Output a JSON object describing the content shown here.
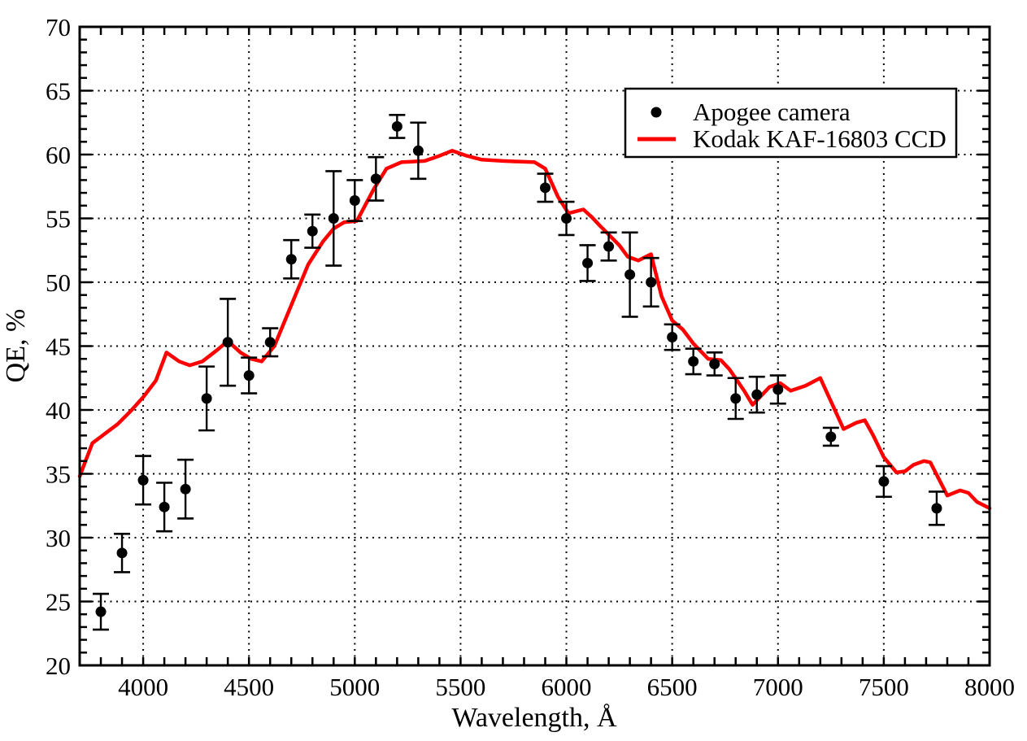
{
  "figure": {
    "background": "#ffffff",
    "frame_color": "#000000"
  },
  "chart_data": {
    "type": "scatter",
    "xlabel": "Wavelength, Å",
    "ylabel": "QE, %",
    "xlim": [
      3700,
      8000
    ],
    "ylim": [
      20,
      70
    ],
    "x_major_ticks": [
      4000,
      4500,
      5000,
      5500,
      6000,
      6500,
      7000,
      7500,
      8000
    ],
    "x_minor_step": 100,
    "y_major_ticks": [
      20,
      25,
      30,
      35,
      40,
      45,
      50,
      55,
      60,
      65,
      70
    ],
    "y_minor_step": 1,
    "grid": "dotted-at-major-ticks",
    "legend_position": "top-right",
    "series": [
      {
        "name": "Apogee camera",
        "type": "scatter-with-errorbars",
        "marker": "filled-circle",
        "color": "#000000",
        "points": [
          {
            "wavelength": 3800,
            "qe": 24.2,
            "err": 1.4
          },
          {
            "wavelength": 3900,
            "qe": 28.8,
            "err": 1.5
          },
          {
            "wavelength": 4000,
            "qe": 34.5,
            "err": 1.9
          },
          {
            "wavelength": 4100,
            "qe": 32.4,
            "err": 1.9
          },
          {
            "wavelength": 4200,
            "qe": 33.8,
            "err": 2.3
          },
          {
            "wavelength": 4300,
            "qe": 40.9,
            "err": 2.5
          },
          {
            "wavelength": 4400,
            "qe": 45.3,
            "err": 3.4
          },
          {
            "wavelength": 4500,
            "qe": 42.7,
            "err": 1.4
          },
          {
            "wavelength": 4600,
            "qe": 45.3,
            "err": 1.1
          },
          {
            "wavelength": 4700,
            "qe": 51.8,
            "err": 1.5
          },
          {
            "wavelength": 4800,
            "qe": 54.0,
            "err": 1.3
          },
          {
            "wavelength": 4900,
            "qe": 55.0,
            "err": 3.7
          },
          {
            "wavelength": 5000,
            "qe": 56.4,
            "err": 1.6
          },
          {
            "wavelength": 5100,
            "qe": 58.1,
            "err": 1.7
          },
          {
            "wavelength": 5200,
            "qe": 62.2,
            "err": 0.9
          },
          {
            "wavelength": 5300,
            "qe": 60.3,
            "err": 2.2
          },
          {
            "wavelength": 5900,
            "qe": 57.4,
            "err": 1.1
          },
          {
            "wavelength": 6000,
            "qe": 55.0,
            "err": 1.3
          },
          {
            "wavelength": 6100,
            "qe": 51.5,
            "err": 1.4
          },
          {
            "wavelength": 6200,
            "qe": 52.8,
            "err": 1.1
          },
          {
            "wavelength": 6300,
            "qe": 50.6,
            "err": 3.3
          },
          {
            "wavelength": 6400,
            "qe": 50.0,
            "err": 1.9
          },
          {
            "wavelength": 6500,
            "qe": 45.7,
            "err": 1.0
          },
          {
            "wavelength": 6600,
            "qe": 43.8,
            "err": 1.0
          },
          {
            "wavelength": 6700,
            "qe": 43.6,
            "err": 0.9
          },
          {
            "wavelength": 6800,
            "qe": 40.9,
            "err": 1.6
          },
          {
            "wavelength": 6900,
            "qe": 41.2,
            "err": 1.4
          },
          {
            "wavelength": 7000,
            "qe": 41.6,
            "err": 1.1
          },
          {
            "wavelength": 7250,
            "qe": 37.9,
            "err": 0.7
          },
          {
            "wavelength": 7500,
            "qe": 34.4,
            "err": 1.2
          },
          {
            "wavelength": 7750,
            "qe": 32.3,
            "err": 1.3
          }
        ]
      },
      {
        "name": "Kodak KAF-16803 CCD",
        "type": "line",
        "color": "#ff0000",
        "points": [
          [
            3700,
            34.8
          ],
          [
            3760,
            37.4
          ],
          [
            3800,
            37.9
          ],
          [
            3880,
            38.9
          ],
          [
            3940,
            39.9
          ],
          [
            4000,
            41.0
          ],
          [
            4060,
            42.3
          ],
          [
            4110,
            44.5
          ],
          [
            4170,
            43.8
          ],
          [
            4220,
            43.5
          ],
          [
            4280,
            43.8
          ],
          [
            4350,
            44.7
          ],
          [
            4400,
            45.4
          ],
          [
            4460,
            44.5
          ],
          [
            4510,
            44.0
          ],
          [
            4560,
            43.8
          ],
          [
            4620,
            45.0
          ],
          [
            4660,
            46.6
          ],
          [
            4720,
            49.0
          ],
          [
            4780,
            51.4
          ],
          [
            4850,
            53.2
          ],
          [
            4900,
            54.2
          ],
          [
            4950,
            54.7
          ],
          [
            5010,
            54.8
          ],
          [
            5090,
            57.3
          ],
          [
            5150,
            58.9
          ],
          [
            5220,
            59.4
          ],
          [
            5330,
            59.5
          ],
          [
            5400,
            59.9
          ],
          [
            5460,
            60.3
          ],
          [
            5530,
            59.9
          ],
          [
            5600,
            59.6
          ],
          [
            5700,
            59.5
          ],
          [
            5850,
            59.4
          ],
          [
            5900,
            58.9
          ],
          [
            5960,
            56.7
          ],
          [
            6010,
            55.4
          ],
          [
            6080,
            55.7
          ],
          [
            6120,
            55.1
          ],
          [
            6160,
            54.4
          ],
          [
            6250,
            52.9
          ],
          [
            6290,
            52.0
          ],
          [
            6340,
            51.7
          ],
          [
            6400,
            52.2
          ],
          [
            6450,
            48.9
          ],
          [
            6500,
            47.0
          ],
          [
            6550,
            46.3
          ],
          [
            6600,
            45.2
          ],
          [
            6670,
            44.0
          ],
          [
            6730,
            43.9
          ],
          [
            6770,
            43.2
          ],
          [
            6840,
            41.5
          ],
          [
            6880,
            40.4
          ],
          [
            6960,
            41.8
          ],
          [
            7010,
            42.1
          ],
          [
            7060,
            41.5
          ],
          [
            7130,
            41.9
          ],
          [
            7200,
            42.5
          ],
          [
            7310,
            38.5
          ],
          [
            7370,
            39.0
          ],
          [
            7410,
            39.2
          ],
          [
            7450,
            38.0
          ],
          [
            7500,
            36.3
          ],
          [
            7560,
            35.1
          ],
          [
            7600,
            35.2
          ],
          [
            7640,
            35.7
          ],
          [
            7690,
            36.0
          ],
          [
            7720,
            35.9
          ],
          [
            7800,
            33.3
          ],
          [
            7860,
            33.7
          ],
          [
            7900,
            33.5
          ],
          [
            7940,
            32.8
          ],
          [
            8000,
            32.3
          ]
        ]
      }
    ]
  }
}
